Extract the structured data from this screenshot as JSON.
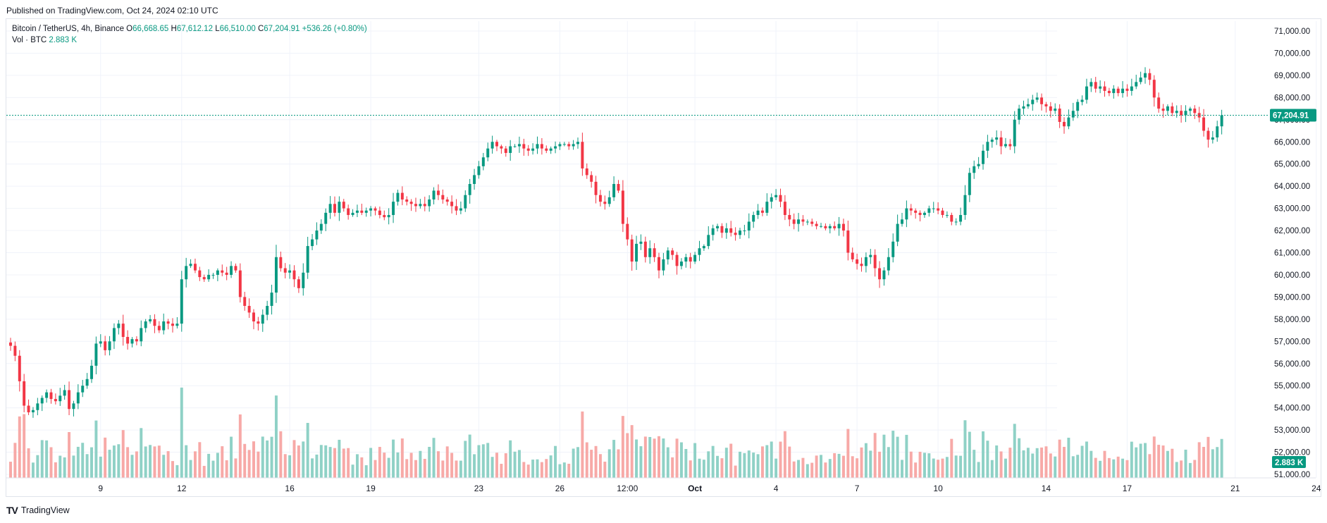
{
  "header": {
    "published": "Published on TradingView.com, Oct 24, 2024 02:10 UTC"
  },
  "legend": {
    "symbol": "Bitcoin / TetherUS, 4h, Binance",
    "open_label": "O",
    "open": "66,668.65",
    "high_label": "H",
    "high": "67,612.12",
    "low_label": "L",
    "low": "66,510.00",
    "close_label": "C",
    "close": "67,204.91",
    "change": "+536.26 (+0.80%)",
    "vol_label": "Vol · BTC",
    "vol_value": "2.883 K"
  },
  "price_tag": "67,204.91",
  "volume_tag": "2.883 K",
  "footer": {
    "logo": "TV",
    "brand": "TradingView"
  },
  "colors": {
    "up": "#089981",
    "down": "#f23645",
    "up_vol": "#8fd1c6",
    "down_vol": "#f7a9a7",
    "grid": "#f0f3fa",
    "price_line": "#089981"
  },
  "chart_data": {
    "type": "candlestick",
    "interval": "4h",
    "y_ticks": [
      "71,000.00",
      "70,000.00",
      "69,000.00",
      "68,000.00",
      "67,000.00",
      "66,000.00",
      "65,000.00",
      "64,000.00",
      "63,000.00",
      "62,000.00",
      "61,000.00",
      "60,000.00",
      "59,000.00",
      "58,000.00",
      "57,000.00",
      "56,000.00",
      "55,000.00",
      "54,000.00",
      "53,000.00",
      "52,000.00",
      "51,000.00"
    ],
    "y_range": [
      51000,
      71000
    ],
    "x_ticks": [
      {
        "label": "9",
        "bar": 20
      },
      {
        "label": "12",
        "bar": 38
      },
      {
        "label": "16",
        "bar": 62
      },
      {
        "label": "19",
        "bar": 80
      },
      {
        "label": "23",
        "bar": 104
      },
      {
        "label": "26",
        "bar": 122
      },
      {
        "label": "12:00",
        "bar": 137
      },
      {
        "label": "Oct",
        "bar": 152
      },
      {
        "label": "4",
        "bar": 170
      },
      {
        "label": "7",
        "bar": 188
      },
      {
        "label": "10",
        "bar": 206
      },
      {
        "label": "14",
        "bar": 230
      },
      {
        "label": "17",
        "bar": 248
      },
      {
        "label": "21",
        "bar": 272
      },
      {
        "label": "24",
        "bar": 290
      }
    ],
    "closes": [
      56800,
      56350,
      55200,
      54100,
      53800,
      53900,
      54200,
      54450,
      54700,
      54400,
      54300,
      54550,
      54800,
      53950,
      54200,
      54700,
      55000,
      55300,
      55900,
      56900,
      57000,
      56600,
      57000,
      57600,
      57800,
      57200,
      56900,
      57100,
      57000,
      57600,
      57900,
      58000,
      57700,
      57500,
      57900,
      57800,
      57700,
      57800,
      59800,
      60400,
      60500,
      60200,
      59900,
      59800,
      60000,
      60000,
      60200,
      60100,
      60000,
      60400,
      60200,
      59000,
      58600,
      58300,
      57900,
      57800,
      58200,
      58600,
      59200,
      60800,
      60300,
      60100,
      60200,
      59800,
      59400,
      60100,
      61300,
      61600,
      62000,
      62300,
      62800,
      63200,
      62800,
      63300,
      63000,
      62700,
      62800,
      62900,
      62800,
      62900,
      63000,
      62900,
      62700,
      62600,
      62700,
      63300,
      63700,
      63400,
      63300,
      63200,
      63100,
      63200,
      63100,
      63400,
      63800,
      63600,
      63400,
      63300,
      63100,
      62900,
      63000,
      63600,
      64100,
      64500,
      64900,
      65300,
      65700,
      66000,
      65800,
      65700,
      65500,
      65800,
      65800,
      65900,
      65700,
      65600,
      65700,
      65900,
      65700,
      65600,
      65700,
      65800,
      65900,
      65900,
      65800,
      65900,
      66000,
      64800,
      64500,
      64200,
      63600,
      63300,
      63200,
      63500,
      64100,
      63800,
      62300,
      61600,
      60600,
      61400,
      61500,
      60800,
      61200,
      60800,
      60200,
      60700,
      61100,
      60900,
      60400,
      60600,
      60800,
      60600,
      60900,
      61200,
      61300,
      61800,
      62100,
      62200,
      61900,
      62100,
      61900,
      61800,
      62000,
      62000,
      62400,
      62700,
      62900,
      62800,
      63300,
      63500,
      63600,
      63300,
      62700,
      62500,
      62300,
      62500,
      62400,
      62400,
      62300,
      62200,
      62200,
      62100,
      62200,
      62100,
      62300,
      62000,
      61000,
      60700,
      60500,
      60400,
      60800,
      60900,
      60300,
      59800,
      60200,
      60800,
      61500,
      62300,
      62500,
      63000,
      62900,
      62800,
      62700,
      62800,
      63000,
      63000,
      62900,
      62700,
      62700,
      62400,
      62400,
      62700,
      63600,
      64600,
      64900,
      65000,
      65600,
      66000,
      66100,
      66200,
      65800,
      65900,
      65800,
      67000,
      67500,
      67600,
      67700,
      67900,
      68000,
      67700,
      67600,
      67400,
      67500,
      66900,
      66700,
      67100,
      67400,
      67800,
      67900,
      68500,
      68700,
      68400,
      68500,
      68300,
      68200,
      68400,
      68200,
      68400,
      68300,
      68500,
      68700,
      68900,
      69100,
      68800,
      68000,
      67500,
      67400,
      67600,
      67300,
      67400,
      67200,
      67400,
      67500,
      67300,
      67100,
      66500,
      66100,
      66200,
      66700,
      67200
    ],
    "volume_range": [
      0,
      17000
    ]
  }
}
